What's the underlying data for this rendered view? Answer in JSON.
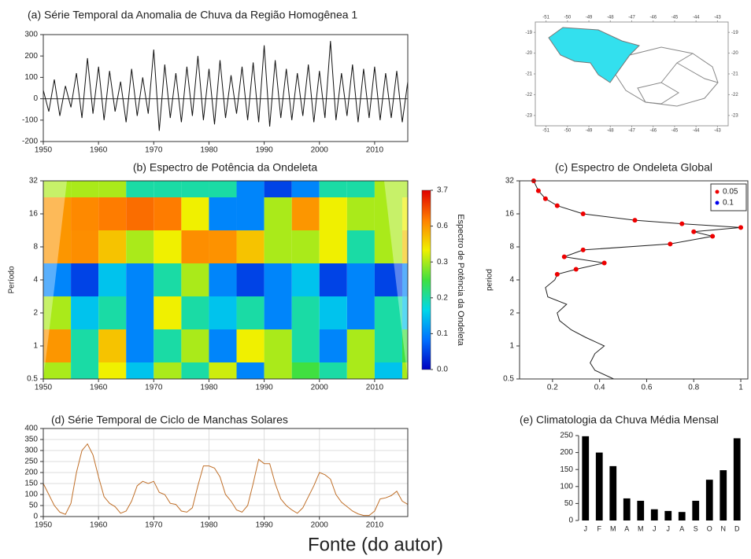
{
  "chart_data": [
    {
      "type": "line",
      "title": "(a) Série Temporal da Anomalia de Chuva da Região Homogênea 1",
      "x": [
        1950,
        1951,
        1952,
        1953,
        1954,
        1955,
        1956,
        1957,
        1958,
        1959,
        1960,
        1961,
        1962,
        1963,
        1964,
        1965,
        1966,
        1967,
        1968,
        1969,
        1970,
        1971,
        1972,
        1973,
        1974,
        1975,
        1976,
        1977,
        1978,
        1979,
        1980,
        1981,
        1982,
        1983,
        1984,
        1985,
        1986,
        1987,
        1988,
        1989,
        1990,
        1991,
        1992,
        1993,
        1994,
        1995,
        1996,
        1997,
        1998,
        1999,
        2000,
        2001,
        2002,
        2003,
        2004,
        2005,
        2006,
        2007,
        2008,
        2009,
        2010,
        2011,
        2012,
        2013,
        2014,
        2015,
        2016
      ],
      "values": [
        40,
        -60,
        90,
        -80,
        60,
        -40,
        120,
        -90,
        190,
        -70,
        150,
        -100,
        130,
        -60,
        80,
        -110,
        140,
        -80,
        100,
        -70,
        230,
        -150,
        160,
        -90,
        120,
        -110,
        150,
        -80,
        200,
        -100,
        140,
        -120,
        180,
        -90,
        110,
        -70,
        150,
        -100,
        170,
        -110,
        250,
        -130,
        180,
        -90,
        140,
        -100,
        120,
        -80,
        160,
        -110,
        130,
        -90,
        270,
        -100,
        120,
        -80,
        160,
        -110,
        140,
        -90,
        150,
        -100,
        120,
        -90,
        130,
        -110,
        80
      ],
      "color": "#111111",
      "xlim": [
        1950,
        2016
      ],
      "xticks": [
        1950,
        1960,
        1970,
        1980,
        1990,
        2000,
        2010
      ],
      "ylim": [
        -200,
        300
      ],
      "yticks": [
        -200,
        -100,
        0,
        100,
        200,
        300
      ]
    },
    {
      "type": "map",
      "region_color": "#33e0ee",
      "xlim": [
        -51.5,
        -42.5
      ],
      "xticks": [
        -51,
        -50,
        -49,
        -48,
        -47,
        -46,
        -45,
        -44,
        -43
      ],
      "ylim": [
        -23.5,
        -18.5
      ],
      "yticks": [
        -19,
        -20,
        -21,
        -22,
        -23
      ]
    },
    {
      "type": "heatmap",
      "title": "(b) Espectro de Potência da Ondeleta",
      "ylabel": "Período",
      "colorbar_label": "Espectro de Potência da Ondeleta",
      "x": [
        1950,
        1955,
        1960,
        1965,
        1970,
        1975,
        1980,
        1985,
        1990,
        1995,
        2000,
        2005,
        2010,
        2015
      ],
      "y": [
        0.5,
        1,
        2,
        4,
        8,
        16,
        32
      ],
      "z": [
        [
          0.3,
          0.2,
          0.4,
          0.15,
          0.3,
          0.2,
          0.35,
          0.1,
          0.3,
          0.25,
          0.2,
          0.3,
          0.15,
          0.3
        ],
        [
          0.6,
          0.2,
          0.5,
          0.1,
          0.2,
          0.3,
          0.1,
          0.4,
          0.3,
          0.2,
          0.1,
          0.3,
          0.2,
          0.25
        ],
        [
          0.3,
          0.15,
          0.2,
          0.1,
          0.4,
          0.2,
          0.15,
          0.2,
          0.1,
          0.2,
          0.15,
          0.1,
          0.2,
          0.15
        ],
        [
          0.1,
          0.05,
          0.15,
          0.1,
          0.2,
          0.3,
          0.1,
          0.05,
          0.1,
          0.15,
          0.05,
          0.1,
          0.05,
          0.1
        ],
        [
          0.6,
          0.8,
          0.5,
          0.3,
          0.4,
          0.8,
          0.7,
          0.5,
          0.3,
          0.3,
          0.4,
          0.2,
          0.3,
          0.5
        ],
        [
          0.6,
          0.9,
          1.2,
          1.5,
          1.2,
          0.4,
          0.1,
          0.1,
          0.3,
          0.6,
          0.4,
          0.3,
          0.3,
          0.4
        ],
        [
          0.3,
          0.3,
          0.3,
          0.2,
          0.2,
          0.2,
          0.2,
          0.1,
          0.05,
          0.1,
          0.2,
          0.2,
          0.3,
          0.3
        ]
      ],
      "colors": [
        "#0000c0",
        "#0070ff",
        "#00d8e8",
        "#40e040",
        "#f0f000",
        "#ff8000",
        "#e00000"
      ],
      "xlim": [
        1950,
        2016
      ],
      "xticks": [
        1950,
        1960,
        1970,
        1980,
        1990,
        2000,
        2010
      ],
      "ylim": [
        0.5,
        32
      ],
      "yticks": [
        0.5,
        1,
        2,
        4,
        8,
        16,
        32
      ],
      "log_y": true,
      "cticks": [
        {
          "value": 0,
          "label": "0.0"
        },
        0.1,
        0.2,
        0.3,
        0.6,
        3.7
      ]
    },
    {
      "type": "line",
      "orientation": "horizontal",
      "title": "(c) Espectro de Ondeleta Global",
      "ylabel": "period",
      "y": [
        0.5,
        0.6,
        0.7,
        0.85,
        1,
        1.2,
        1.4,
        1.7,
        2,
        2.4,
        2.8,
        3.4,
        4,
        4.5,
        5,
        5.7,
        6.5,
        7.5,
        8.5,
        10,
        11,
        12,
        13,
        14,
        16,
        19,
        22,
        26,
        32
      ],
      "series": [
        {
          "color": "#222222",
          "values": [
            0.46,
            0.38,
            0.36,
            0.38,
            0.42,
            0.34,
            0.28,
            0.23,
            0.22,
            0.26,
            0.18,
            0.17,
            0.21,
            0.22,
            0.3,
            0.42,
            0.25,
            0.33,
            0.7,
            0.88,
            0.8,
            1.0,
            0.75,
            0.55,
            0.33,
            0.22,
            0.17,
            0.14,
            0.12
          ]
        },
        {
          "name": "0.05",
          "color": "#ee0000",
          "values": [
            null,
            null,
            null,
            null,
            null,
            null,
            null,
            null,
            null,
            null,
            null,
            null,
            null,
            0.22,
            0.3,
            0.42,
            0.25,
            0.33,
            0.7,
            0.88,
            0.8,
            1.0,
            0.75,
            0.55,
            0.33,
            0.22,
            0.17,
            0.14,
            0.12
          ]
        },
        {
          "name": "0.1",
          "color": "#0000ee",
          "values": [
            null,
            null,
            null,
            null,
            null,
            null,
            null,
            null,
            null,
            null,
            null,
            null,
            null,
            null,
            null,
            null,
            null,
            null,
            null,
            null,
            null,
            null,
            null,
            null,
            null,
            null,
            null,
            null,
            null
          ]
        }
      ],
      "xlim": [
        0.06,
        1.03
      ],
      "xticks": [
        0.2,
        0.4,
        0.6,
        0.8,
        1
      ],
      "ylim": [
        0.5,
        32
      ],
      "yticks": [
        0.5,
        1,
        2,
        4,
        8,
        16,
        32
      ],
      "log_y": true,
      "legend": "top-right"
    },
    {
      "type": "line",
      "title": "(d) Série Temporal de Ciclo de Manchas Solares",
      "x": [
        1950,
        1951,
        1952,
        1953,
        1954,
        1955,
        1956,
        1957,
        1958,
        1959,
        1960,
        1961,
        1962,
        1963,
        1964,
        1965,
        1966,
        1967,
        1968,
        1969,
        1970,
        1971,
        1972,
        1973,
        1974,
        1975,
        1976,
        1977,
        1978,
        1979,
        1980,
        1981,
        1982,
        1983,
        1984,
        1985,
        1986,
        1987,
        1988,
        1989,
        1990,
        1991,
        1992,
        1993,
        1994,
        1995,
        1996,
        1997,
        1998,
        1999,
        2000,
        2001,
        2002,
        2003,
        2004,
        2005,
        2006,
        2007,
        2008,
        2009,
        2010,
        2011,
        2012,
        2013,
        2014,
        2015,
        2016
      ],
      "values": [
        150,
        100,
        50,
        20,
        10,
        60,
        200,
        300,
        330,
        280,
        180,
        90,
        60,
        45,
        15,
        25,
        70,
        140,
        160,
        150,
        160,
        110,
        100,
        60,
        55,
        25,
        20,
        40,
        140,
        230,
        230,
        220,
        180,
        100,
        70,
        30,
        20,
        50,
        150,
        260,
        240,
        240,
        150,
        80,
        50,
        30,
        15,
        40,
        90,
        140,
        200,
        190,
        170,
        100,
        65,
        45,
        25,
        12,
        5,
        5,
        25,
        80,
        85,
        95,
        115,
        70,
        55
      ],
      "color": "#c0702a",
      "grid": true,
      "xlim": [
        1950,
        2016
      ],
      "xticks": [
        1950,
        1960,
        1970,
        1980,
        1990,
        2000,
        2010
      ],
      "ylim": [
        0,
        400
      ],
      "yticks": [
        0,
        50,
        100,
        150,
        200,
        250,
        300,
        350,
        400
      ]
    },
    {
      "type": "bar",
      "title": "(e) Climatologia da Chuva Média Mensal",
      "categories": [
        "J",
        "F",
        "M",
        "A",
        "M",
        "J",
        "J",
        "A",
        "S",
        "O",
        "N",
        "D"
      ],
      "values": [
        248,
        200,
        160,
        65,
        58,
        33,
        28,
        25,
        58,
        120,
        148,
        242
      ],
      "color": "#000000",
      "ylim": [
        0,
        250
      ],
      "yticks": [
        0,
        50,
        100,
        150,
        200,
        250
      ]
    }
  ],
  "caption": "Fonte (do autor)"
}
